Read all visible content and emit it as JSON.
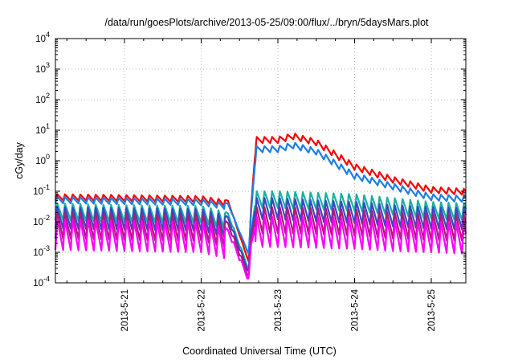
{
  "chart_data": {
    "type": "line",
    "title": "/data/run/goesPlots/archive/2013-05-25/09:00/flux/../bryn/5daysMars.plot",
    "xlabel": "Coordinated Universal Time (UTC)",
    "ylabel": "cGy/day",
    "x_range_days": [
      20.1,
      25.45
    ],
    "ylim": [
      0.0001,
      10000
    ],
    "y_scale": "log",
    "y_ticks": [
      {
        "base": "10",
        "exp": "-4"
      },
      {
        "base": "10",
        "exp": "-3"
      },
      {
        "base": "10",
        "exp": "-2"
      },
      {
        "base": "10",
        "exp": "-1"
      },
      {
        "base": "10",
        "exp": "0"
      },
      {
        "base": "10",
        "exp": "1"
      },
      {
        "base": "10",
        "exp": "2"
      },
      {
        "base": "10",
        "exp": "3"
      },
      {
        "base": "10",
        "exp": "4"
      }
    ],
    "x_ticks": [
      {
        "label": "2013-5-21",
        "day": 21
      },
      {
        "label": "2013-5-22",
        "day": 22
      },
      {
        "label": "2013-5-23",
        "day": 23
      },
      {
        "label": "2013-5-24",
        "day": 24
      },
      {
        "label": "2013-5-25",
        "day": 25
      }
    ],
    "grid": true,
    "cycle_days": 0.1,
    "series": [
      {
        "color": "#ff0000",
        "peak_decades": 0.2,
        "x": [
          20.1,
          21.0,
          22.0,
          22.35,
          22.62,
          22.65,
          22.72,
          23.0,
          23.2,
          23.5,
          24.0,
          24.5,
          25.0,
          25.45
        ],
        "y": [
          0.08,
          0.075,
          0.07,
          0.05,
          0.0005,
          0.03,
          6,
          6,
          8,
          5,
          0.8,
          0.3,
          0.14,
          0.12
        ]
      },
      {
        "color": "#1c7fe0",
        "peak_decades": 0.2,
        "x": [
          20.1,
          21.0,
          22.0,
          22.35,
          22.62,
          22.65,
          22.72,
          23.0,
          23.2,
          23.5,
          24.0,
          24.5,
          25.0,
          25.45
        ],
        "y": [
          0.065,
          0.06,
          0.055,
          0.04,
          0.0009,
          0.02,
          3,
          3,
          4,
          2.5,
          0.4,
          0.18,
          0.08,
          0.07
        ]
      },
      {
        "color": "#1ab0a0",
        "peak_decades": 0.55,
        "x": [
          20.1,
          21.0,
          22.0,
          22.35,
          22.62,
          22.65,
          22.72,
          23.0,
          23.5,
          24.0,
          24.5,
          25.0,
          25.45
        ],
        "y": [
          0.04,
          0.035,
          0.033,
          0.02,
          0.0003,
          0.004,
          0.1,
          0.1,
          0.09,
          0.08,
          0.06,
          0.045,
          0.04
        ]
      },
      {
        "color": "#3a46c8",
        "peak_decades": 0.7,
        "x": [
          20.1,
          21.0,
          22.0,
          22.35,
          22.62,
          22.65,
          22.72,
          23.0,
          23.5,
          24.0,
          24.5,
          25.0,
          25.45
        ],
        "y": [
          0.03,
          0.028,
          0.026,
          0.015,
          0.00025,
          0.004,
          0.06,
          0.06,
          0.05,
          0.045,
          0.035,
          0.03,
          0.028
        ]
      },
      {
        "color": "#b01a78",
        "peak_decades": 0.85,
        "x": [
          20.1,
          21.0,
          22.0,
          22.35,
          22.62,
          22.65,
          22.72,
          23.0,
          23.5,
          24.0,
          24.5,
          25.0,
          25.45
        ],
        "y": [
          0.02,
          0.018,
          0.017,
          0.01,
          0.00018,
          0.003,
          0.03,
          0.03,
          0.028,
          0.025,
          0.02,
          0.018,
          0.017
        ]
      },
      {
        "color": "#ff00ff",
        "peak_decades": 1.0,
        "x": [
          20.1,
          21.0,
          22.0,
          22.35,
          22.62,
          22.65,
          22.72,
          23.0,
          23.5,
          24.0,
          24.5,
          25.0,
          25.45
        ],
        "y": [
          0.012,
          0.011,
          0.01,
          0.006,
          0.00015,
          0.002,
          0.015,
          0.015,
          0.014,
          0.013,
          0.011,
          0.01,
          0.009
        ]
      }
    ]
  }
}
